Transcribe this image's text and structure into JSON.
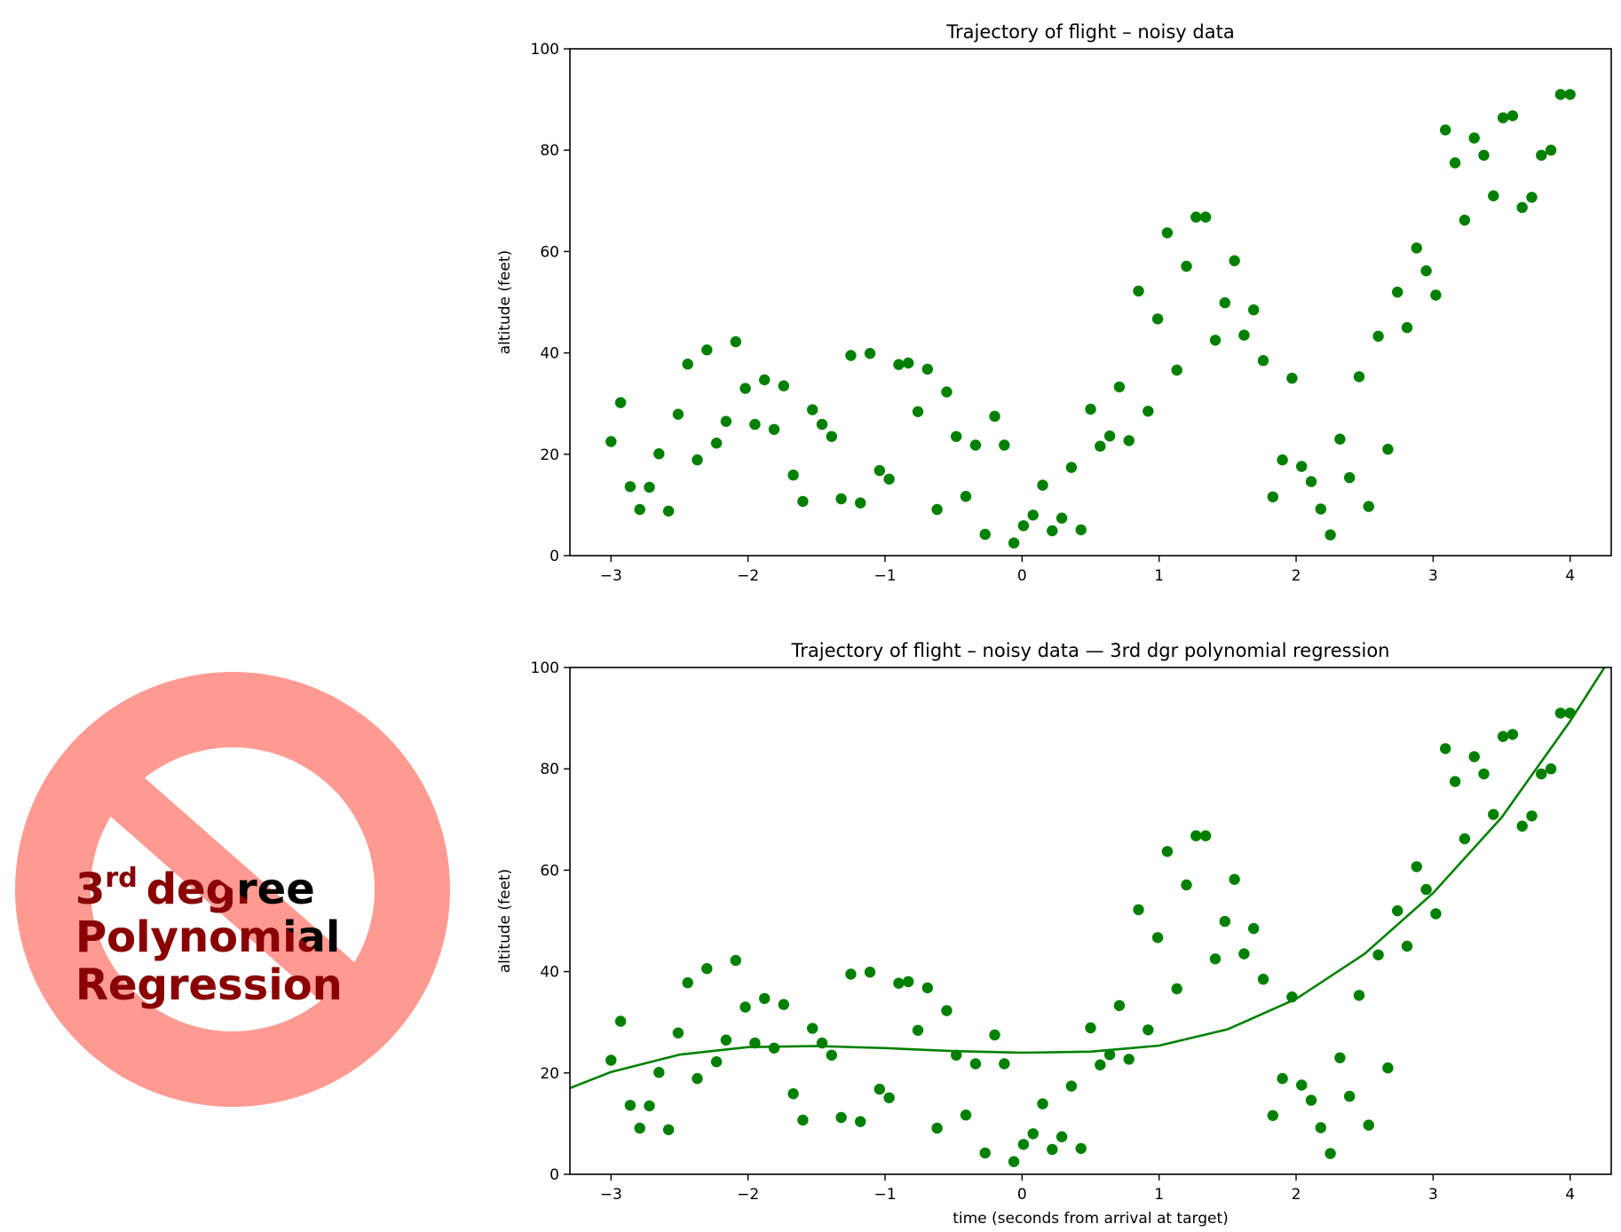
{
  "chart_data": [
    {
      "type": "scatter",
      "title": "Trajectory of flight  –  noisy data",
      "xlabel": "",
      "ylabel": "altitude (feet)",
      "xlim": [
        -3.3,
        4.3
      ],
      "ylim": [
        0,
        100
      ],
      "xticks": [
        -3,
        -2,
        -1,
        0,
        1,
        2,
        3,
        4
      ],
      "xtick_labels": [
        "−3",
        "−2",
        "−1",
        "0",
        "1",
        "2",
        "3",
        "4"
      ],
      "yticks": [
        0,
        20,
        40,
        60,
        80,
        100
      ],
      "ytick_labels": [
        "0",
        "20",
        "40",
        "60",
        "80",
        "100"
      ],
      "marker_color": "#008000",
      "grid": false,
      "series": [
        {
          "x": [
            -3.0,
            -2.93,
            -2.86,
            -2.79,
            -2.72,
            -2.65,
            -2.58,
            -2.51,
            -2.44,
            -2.37,
            -2.3,
            -2.23,
            -2.16,
            -2.09,
            -2.02,
            -1.95,
            -1.88,
            -1.81,
            -1.74,
            -1.67,
            -1.6,
            -1.53,
            -1.46,
            -1.39,
            -1.32,
            -1.25,
            -1.18,
            -1.11,
            -1.04,
            -0.97,
            -0.9,
            -0.83,
            -0.76,
            -0.69,
            -0.62,
            -0.55,
            -0.48,
            -0.41,
            -0.34,
            -0.27,
            -0.2,
            -0.13,
            -0.06,
            0.01,
            0.08,
            0.15,
            0.22,
            0.29,
            0.36,
            0.43,
            0.5,
            0.57,
            0.64,
            0.71,
            0.78,
            0.85,
            0.92,
            0.99,
            1.06,
            1.13,
            1.2,
            1.27,
            1.34,
            1.41,
            1.48,
            1.55,
            1.62,
            1.69,
            1.76,
            1.83,
            1.9,
            1.97,
            2.04,
            2.11,
            2.18,
            2.25,
            2.32,
            2.39,
            2.46,
            2.53,
            2.6,
            2.67,
            2.74,
            2.81,
            2.88,
            2.95,
            3.02,
            3.09,
            3.16,
            3.23,
            3.3,
            3.37,
            3.44,
            3.51,
            3.58,
            3.65,
            3.72,
            3.79,
            3.86,
            3.93,
            4.0
          ],
          "y": [
            22.5,
            30.2,
            13.6,
            9.1,
            13.5,
            20.1,
            8.8,
            27.9,
            37.8,
            18.9,
            40.6,
            22.2,
            26.5,
            42.2,
            33.0,
            25.9,
            34.7,
            24.9,
            33.5,
            15.9,
            10.7,
            28.8,
            25.9,
            23.5,
            11.2,
            39.5,
            10.4,
            39.9,
            16.8,
            15.1,
            37.7,
            38.0,
            28.4,
            36.8,
            9.1,
            32.3,
            23.5,
            11.7,
            21.8,
            4.2,
            27.5,
            21.8,
            2.5,
            5.9,
            8.0,
            13.9,
            4.9,
            7.4,
            17.4,
            5.1,
            28.9,
            21.6,
            23.6,
            33.3,
            22.7,
            52.2,
            28.5,
            46.7,
            63.7,
            36.6,
            57.1,
            66.8,
            66.8,
            42.5,
            49.9,
            58.2,
            43.5,
            48.5,
            38.5,
            11.6,
            18.9,
            35.0,
            17.6,
            14.6,
            9.2,
            4.1,
            23.0,
            15.4,
            35.3,
            9.7,
            43.3,
            21.0,
            52.0,
            45.0,
            60.7,
            56.2,
            51.4,
            84.0,
            77.5,
            66.2,
            82.4,
            79.0,
            71.0,
            86.4,
            86.8,
            68.7,
            70.7,
            79.0,
            80.0,
            91.0,
            91.0
          ]
        }
      ]
    },
    {
      "type": "scatter",
      "title": "Trajectory of flight  –  noisy data — 3rd dgr polynomial regression",
      "xlabel": "time (seconds from arrival at target)",
      "ylabel": "altitude (feet)",
      "xlim": [
        -3.3,
        4.3
      ],
      "ylim": [
        0,
        100
      ],
      "xticks": [
        -3,
        -2,
        -1,
        0,
        1,
        2,
        3,
        4
      ],
      "xtick_labels": [
        "−3",
        "−2",
        "−1",
        "0",
        "1",
        "2",
        "3",
        "4"
      ],
      "yticks": [
        0,
        20,
        40,
        60,
        80,
        100
      ],
      "ytick_labels": [
        "0",
        "20",
        "40",
        "60",
        "80",
        "100"
      ],
      "marker_color": "#008000",
      "line_color": "#008000",
      "grid": false,
      "fit": {
        "degree": 3,
        "x": [
          -3.3,
          -3.0,
          -2.5,
          -2.0,
          -1.5,
          -1.0,
          -0.5,
          0.0,
          0.5,
          1.0,
          1.5,
          2.0,
          2.5,
          3.0,
          3.5,
          4.0,
          4.25
        ],
        "y": [
          17.0,
          20.2,
          23.6,
          25.1,
          25.3,
          24.9,
          24.3,
          24.0,
          24.2,
          25.4,
          28.6,
          34.6,
          43.5,
          55.5,
          70.4,
          89.4,
          100.0
        ]
      },
      "series": [
        {
          "x": [
            -3.0,
            -2.93,
            -2.86,
            -2.79,
            -2.72,
            -2.65,
            -2.58,
            -2.51,
            -2.44,
            -2.37,
            -2.3,
            -2.23,
            -2.16,
            -2.09,
            -2.02,
            -1.95,
            -1.88,
            -1.81,
            -1.74,
            -1.67,
            -1.6,
            -1.53,
            -1.46,
            -1.39,
            -1.32,
            -1.25,
            -1.18,
            -1.11,
            -1.04,
            -0.97,
            -0.9,
            -0.83,
            -0.76,
            -0.69,
            -0.62,
            -0.55,
            -0.48,
            -0.41,
            -0.34,
            -0.27,
            -0.2,
            -0.13,
            -0.06,
            0.01,
            0.08,
            0.15,
            0.22,
            0.29,
            0.36,
            0.43,
            0.5,
            0.57,
            0.64,
            0.71,
            0.78,
            0.85,
            0.92,
            0.99,
            1.06,
            1.13,
            1.2,
            1.27,
            1.34,
            1.41,
            1.48,
            1.55,
            1.62,
            1.69,
            1.76,
            1.83,
            1.9,
            1.97,
            2.04,
            2.11,
            2.18,
            2.25,
            2.32,
            2.39,
            2.46,
            2.53,
            2.6,
            2.67,
            2.74,
            2.81,
            2.88,
            2.95,
            3.02,
            3.09,
            3.16,
            3.23,
            3.3,
            3.37,
            3.44,
            3.51,
            3.58,
            3.65,
            3.72,
            3.79,
            3.86,
            3.93,
            4.0
          ],
          "y": [
            22.5,
            30.2,
            13.6,
            9.1,
            13.5,
            20.1,
            8.8,
            27.9,
            37.8,
            18.9,
            40.6,
            22.2,
            26.5,
            42.2,
            33.0,
            25.9,
            34.7,
            24.9,
            33.5,
            15.9,
            10.7,
            28.8,
            25.9,
            23.5,
            11.2,
            39.5,
            10.4,
            39.9,
            16.8,
            15.1,
            37.7,
            38.0,
            28.4,
            36.8,
            9.1,
            32.3,
            23.5,
            11.7,
            21.8,
            4.2,
            27.5,
            21.8,
            2.5,
            5.9,
            8.0,
            13.9,
            4.9,
            7.4,
            17.4,
            5.1,
            28.9,
            21.6,
            23.6,
            33.3,
            22.7,
            52.2,
            28.5,
            46.7,
            63.7,
            36.6,
            57.1,
            66.8,
            66.8,
            42.5,
            49.9,
            58.2,
            43.5,
            48.5,
            38.5,
            11.6,
            18.9,
            35.0,
            17.6,
            14.6,
            9.2,
            4.1,
            23.0,
            15.4,
            35.3,
            9.7,
            43.3,
            21.0,
            52.0,
            45.0,
            60.7,
            56.2,
            51.4,
            84.0,
            77.5,
            66.2,
            82.4,
            79.0,
            71.0,
            86.4,
            86.8,
            68.7,
            70.7,
            79.0,
            80.0,
            91.0,
            91.0
          ]
        }
      ]
    }
  ],
  "badge": {
    "line1_number": "3",
    "line1_superscript": "rd",
    "line1_word": "degree",
    "line2": "Polynomial",
    "line3": "Regression",
    "circle_color": "#ff9a93",
    "text_dark": "#000000",
    "text_over_band": "#8b0000"
  }
}
